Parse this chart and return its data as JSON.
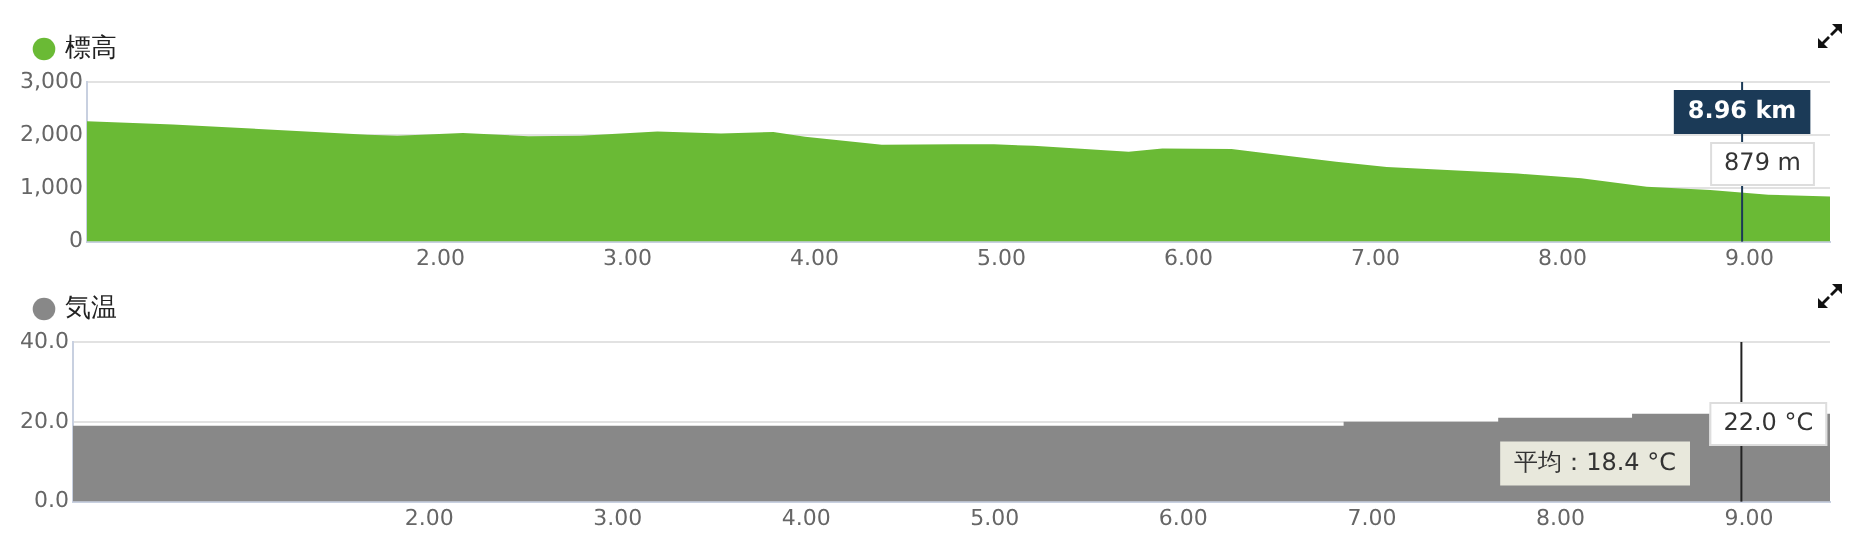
{
  "chart_data": [
    {
      "type": "area",
      "legend": "top left",
      "grid": "y",
      "series": [
        {
          "name": "標高",
          "color": "#6aba35",
          "x": [
            0.11,
            0.57,
            1.61,
            1.77,
            2.12,
            2.47,
            2.75,
            3.16,
            3.5,
            3.78,
            3.95,
            4.36,
            4.75,
            4.96,
            5.17,
            5.68,
            5.86,
            6.23,
            6.79,
            7.06,
            7.76,
            8.1,
            8.45,
            8.79,
            9.1,
            9.43
          ],
          "values": [
            2260,
            2200,
            2010,
            1990,
            2040,
            1980,
            1990,
            2070,
            2030,
            2060,
            1970,
            1820,
            1830,
            1830,
            1800,
            1690,
            1750,
            1740,
            1500,
            1400,
            1280,
            1190,
            1030,
            970,
            880,
            850
          ]
        }
      ],
      "xlim": [
        0.11,
        9.43
      ],
      "xticks": [
        {
          "value": 2,
          "label": "2.00"
        },
        {
          "value": 3,
          "label": "3.00"
        },
        {
          "value": 4,
          "label": "4.00"
        },
        {
          "value": 5,
          "label": "5.00"
        },
        {
          "value": 6,
          "label": "6.00"
        },
        {
          "value": 7,
          "label": "7.00"
        },
        {
          "value": 8,
          "label": "8.00"
        },
        {
          "value": 9,
          "label": "9.00"
        }
      ],
      "ylim": [
        0,
        3000
      ],
      "yticks": [
        {
          "value": 0,
          "label": "0"
        },
        {
          "value": 1000,
          "label": "1,000"
        },
        {
          "value": 2000,
          "label": "2,000"
        },
        {
          "value": 3000,
          "label": "3,000"
        }
      ],
      "ref_lines": [
        {
          "axis": "x",
          "value": 8.96,
          "label": "8.96 km",
          "color": "#1b3a57"
        }
      ],
      "annotations": [
        {
          "text": "879 m",
          "x": 8.96,
          "y": 879
        }
      ]
    },
    {
      "type": "area",
      "legend": "top left",
      "grid": "y",
      "series": [
        {
          "name": "気温",
          "color": "#888888",
          "x": [
            0.11,
            6.85,
            6.85,
            7.67,
            7.67,
            8.38,
            8.38,
            9.43
          ],
          "values": [
            19,
            19,
            20,
            20,
            21,
            21,
            22,
            22
          ]
        }
      ],
      "xlim": [
        0.11,
        9.43
      ],
      "xticks": [
        {
          "value": 2,
          "label": "2.00"
        },
        {
          "value": 3,
          "label": "3.00"
        },
        {
          "value": 4,
          "label": "4.00"
        },
        {
          "value": 5,
          "label": "5.00"
        },
        {
          "value": 6,
          "label": "6.00"
        },
        {
          "value": 7,
          "label": "7.00"
        },
        {
          "value": 8,
          "label": "8.00"
        },
        {
          "value": 9,
          "label": "9.00"
        }
      ],
      "ylim": [
        0,
        40
      ],
      "yticks": [
        {
          "value": 0,
          "label": "0.0"
        },
        {
          "value": 20,
          "label": "20.0"
        },
        {
          "value": 40,
          "label": "40.0"
        }
      ],
      "ref_lines": [
        {
          "axis": "x",
          "value": 8.96,
          "color": "#222222"
        }
      ],
      "annotations": [
        {
          "text": "22.0 °C",
          "x": 8.96,
          "y": 22
        },
        "平均：18.4 °C"
      ]
    }
  ]
}
